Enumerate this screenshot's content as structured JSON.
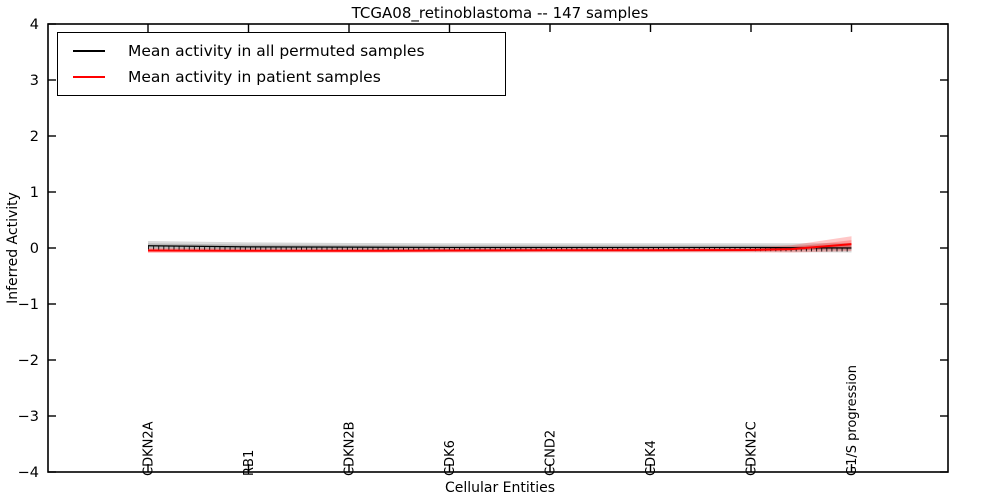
{
  "title": "TCGA08_retinoblastoma -- 147 samples",
  "xlabel": "Cellular Entities",
  "ylabel": "Inferred Activity",
  "legend": {
    "items": [
      {
        "label": "Mean activity in all permuted samples",
        "color": "#000000"
      },
      {
        "label": "Mean activity in patient samples",
        "color": "#ff0000"
      }
    ]
  },
  "chart_data": {
    "type": "line",
    "title": "TCGA08_retinoblastoma -- 147 samples",
    "xlabel": "Cellular Entities",
    "ylabel": "Inferred Activity",
    "ylim": [
      -4,
      4
    ],
    "grid": false,
    "legend_position": "upper left",
    "categories": [
      "CDKN2A",
      "RB1",
      "CDKN2B",
      "CDK6",
      "CCND2",
      "CDK4",
      "CDKN2C",
      "G1/S progression"
    ],
    "ytick_values": [
      -4,
      -3,
      -2,
      -1,
      0,
      1,
      2,
      3,
      4
    ],
    "ytick_labels": [
      "−4",
      "−3",
      "−2",
      "−1",
      "0",
      "1",
      "2",
      "3",
      "4"
    ],
    "x": [
      0,
      1,
      2,
      3,
      4,
      5,
      6,
      6.4,
      7
    ],
    "series": [
      {
        "name": "Mean activity in all permuted samples",
        "color": "#000000",
        "line_width": 1.2,
        "values": [
          0.04,
          0.02,
          0.015,
          0.01,
          0.01,
          0.01,
          0.01,
          0.005,
          0.0
        ],
        "band_top": [
          0.125,
          0.1,
          0.09,
          0.085,
          0.085,
          0.085,
          0.085,
          0.085,
          0.09
        ],
        "band_bottom": [
          -0.05,
          -0.06,
          -0.065,
          -0.07,
          -0.07,
          -0.07,
          -0.07,
          -0.075,
          -0.08
        ],
        "band_color": "rgba(0,0,0,0.15)"
      },
      {
        "name": "Mean activity in patient samples",
        "color": "#ff0000",
        "line_width": 2.0,
        "values": [
          -0.045,
          -0.05,
          -0.05,
          -0.045,
          -0.04,
          -0.04,
          -0.035,
          -0.02,
          0.07
        ],
        "band_top": [
          0.0,
          -0.01,
          -0.01,
          -0.005,
          0.0,
          0.0,
          0.01,
          0.05,
          0.21
        ],
        "band_bottom": [
          -0.09,
          -0.09,
          -0.09,
          -0.085,
          -0.08,
          -0.08,
          -0.08,
          -0.08,
          -0.055
        ],
        "band_color": "rgba(255,0,0,0.22)"
      }
    ]
  }
}
